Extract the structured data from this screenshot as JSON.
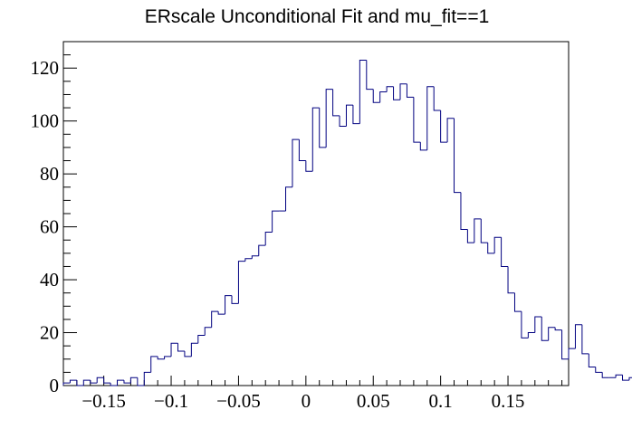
{
  "chart_data": {
    "type": "histogram",
    "title": "ERscale Unconditional Fit and mu_fit==1",
    "xlabel": "",
    "ylabel": "",
    "xlim": [
      -0.18,
      0.195
    ],
    "ylim": [
      0,
      130
    ],
    "bin_width": 0.005,
    "x_start": -0.18,
    "x_ticks": [
      -0.15,
      -0.1,
      -0.05,
      0,
      0.05,
      0.1,
      0.15
    ],
    "x_tick_labels": [
      "−0.15",
      "−0.1",
      "−0.05",
      "0",
      "0.05",
      "0.1",
      "0.15"
    ],
    "y_ticks": [
      0,
      20,
      40,
      60,
      80,
      100,
      120
    ],
    "y_tick_labels": [
      "0",
      "20",
      "40",
      "60",
      "80",
      "100",
      "120"
    ],
    "line_color": "#000080",
    "values": [
      1,
      2,
      0,
      2,
      1,
      3,
      1,
      0,
      2,
      1,
      3,
      0,
      5,
      11,
      10,
      11,
      16,
      13,
      11,
      16,
      19,
      22,
      28,
      27,
      34,
      31,
      47,
      48,
      49,
      53,
      58,
      66,
      66,
      75,
      93,
      85,
      81,
      105,
      90,
      112,
      102,
      98,
      106,
      99,
      123,
      112,
      107,
      111,
      113,
      108,
      114,
      109,
      92,
      89,
      113,
      104,
      92,
      101,
      73,
      59,
      54,
      63,
      54,
      50,
      56,
      45,
      35,
      28,
      18,
      20,
      26,
      17,
      22,
      21,
      10,
      14,
      23,
      12,
      7,
      5,
      3,
      3,
      4,
      2,
      3,
      1,
      3,
      2,
      1,
      1,
      1,
      0,
      1,
      0,
      0
    ]
  }
}
